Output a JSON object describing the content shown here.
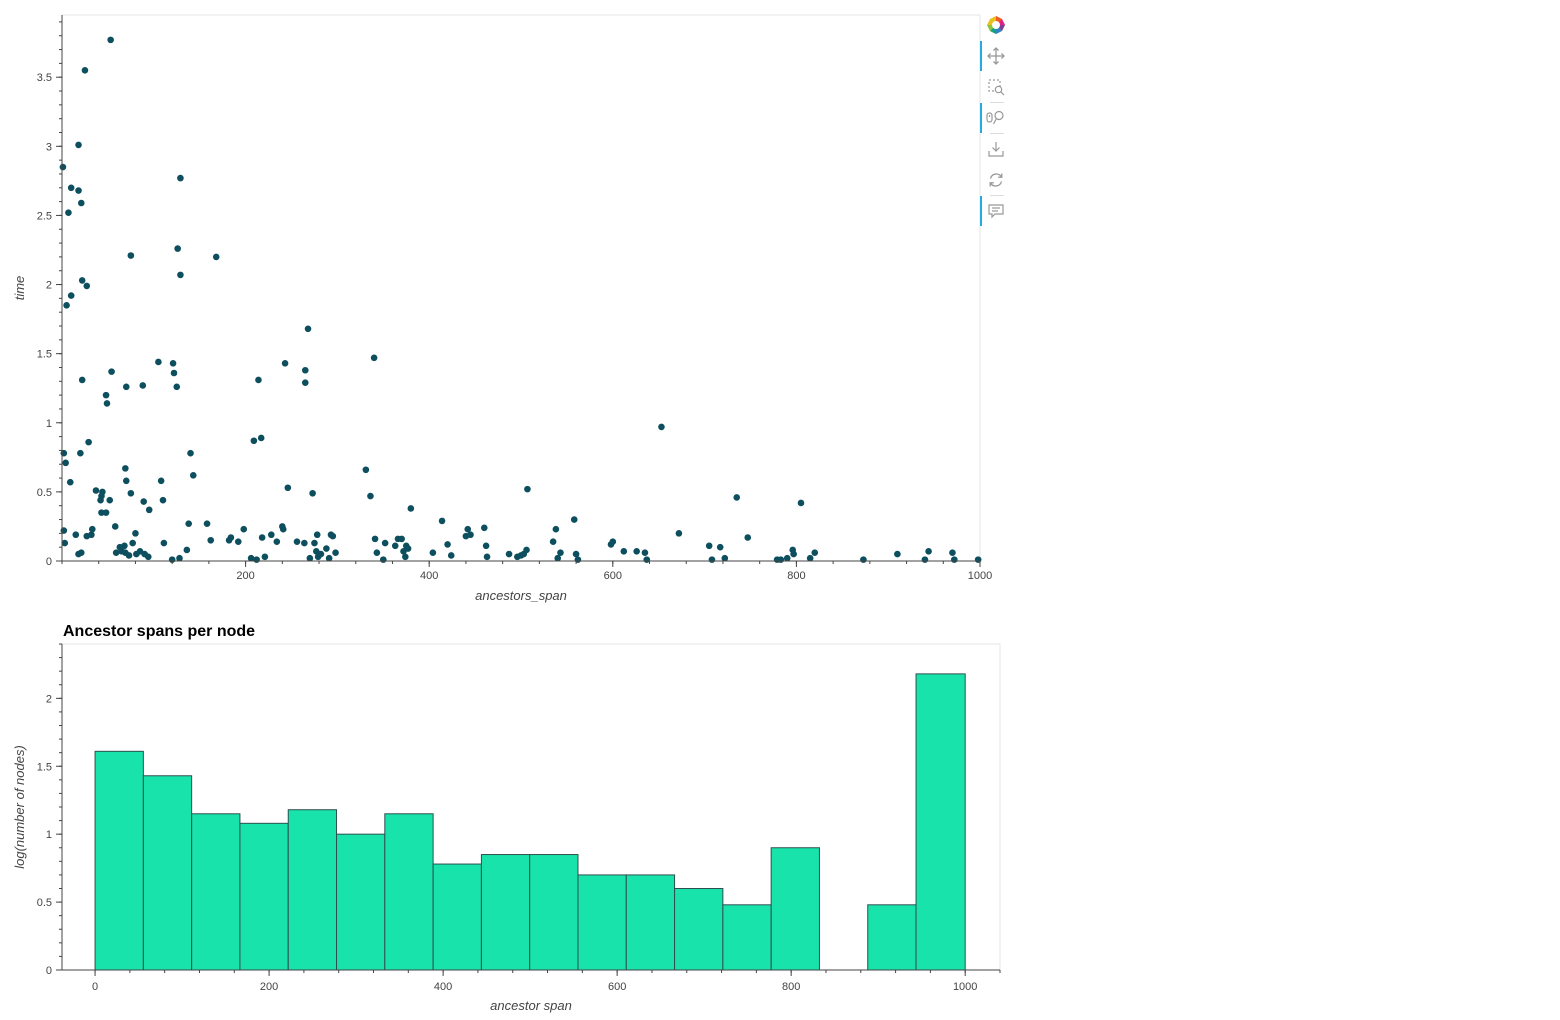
{
  "colors": {
    "scatter_point": "#0d4f5e",
    "hist_fill": "#17e3ab",
    "hist_stroke": "#2f4f4f",
    "axis": "#444444",
    "frame": "#e5e5e5",
    "toolbar_active": "#26aae1"
  },
  "toolbar": {
    "tools": [
      {
        "icon": "bokeh-logo-icon",
        "active": false
      },
      {
        "icon": "pan-icon",
        "active": true
      },
      {
        "icon": "box-zoom-icon",
        "active": false
      },
      {
        "icon": "wheel-zoom-icon",
        "active": true
      },
      {
        "icon": "save-icon",
        "active": false
      },
      {
        "icon": "reset-icon",
        "active": false
      },
      {
        "icon": "hover-icon",
        "active": true
      }
    ]
  },
  "chart_data": [
    {
      "type": "scatter",
      "title": "",
      "xlabel": "ancestors_span",
      "ylabel": "time",
      "xlim": [
        0,
        1000
      ],
      "ylim": [
        0,
        3.95
      ],
      "xticks": [
        200,
        400,
        600,
        800,
        1000
      ],
      "yticks": [
        0,
        0.5,
        1,
        1.5,
        2,
        2.5,
        3,
        3.5
      ],
      "ytick_labels": [
        "0",
        "0.5",
        "1",
        "1.5",
        "2",
        "2.5",
        "3",
        "3.5"
      ],
      "grid": false,
      "points": [
        [
          1,
          2.85
        ],
        [
          5,
          1.85
        ],
        [
          7,
          2.52
        ],
        [
          10,
          2.7
        ],
        [
          10,
          1.92
        ],
        [
          18,
          2.68
        ],
        [
          18,
          3.01
        ],
        [
          21,
          2.59
        ],
        [
          22,
          2.03
        ],
        [
          27,
          1.99
        ],
        [
          25,
          3.55
        ],
        [
          53,
          3.77
        ],
        [
          22,
          1.31
        ],
        [
          20,
          0.78
        ],
        [
          29,
          0.86
        ],
        [
          2,
          0.78
        ],
        [
          4,
          0.71
        ],
        [
          9,
          0.57
        ],
        [
          2,
          0.22
        ],
        [
          3,
          0.13
        ],
        [
          15,
          0.19
        ],
        [
          18,
          0.05
        ],
        [
          21,
          0.06
        ],
        [
          27,
          0.18
        ],
        [
          32,
          0.19
        ],
        [
          33,
          0.23
        ],
        [
          37,
          0.51
        ],
        [
          42,
          0.44
        ],
        [
          43,
          0.47
        ],
        [
          44,
          0.5
        ],
        [
          43,
          0.35
        ],
        [
          48,
          0.35
        ],
        [
          52,
          0.44
        ],
        [
          49,
          1.14
        ],
        [
          48,
          1.2
        ],
        [
          54,
          1.37
        ],
        [
          70,
          1.26
        ],
        [
          75,
          2.21
        ],
        [
          88,
          1.27
        ],
        [
          69,
          0.67
        ],
        [
          70,
          0.58
        ],
        [
          75,
          0.49
        ],
        [
          58,
          0.25
        ],
        [
          59,
          0.06
        ],
        [
          63,
          0.1
        ],
        [
          65,
          0.07
        ],
        [
          68,
          0.11
        ],
        [
          69,
          0.06
        ],
        [
          73,
          0.04
        ],
        [
          77,
          0.13
        ],
        [
          80,
          0.2
        ],
        [
          81,
          0.05
        ],
        [
          85,
          0.07
        ],
        [
          90,
          0.05
        ],
        [
          94,
          0.03
        ],
        [
          89,
          0.43
        ],
        [
          95,
          0.37
        ],
        [
          105,
          1.44
        ],
        [
          108,
          0.58
        ],
        [
          110,
          0.44
        ],
        [
          111,
          0.13
        ],
        [
          121,
          1.43
        ],
        [
          122,
          1.36
        ],
        [
          125,
          1.26
        ],
        [
          126,
          2.26
        ],
        [
          129,
          2.07
        ],
        [
          129,
          2.77
        ],
        [
          120,
          0.01
        ],
        [
          128,
          0.02
        ],
        [
          136,
          0.08
        ],
        [
          138,
          0.27
        ],
        [
          140,
          0.78
        ],
        [
          143,
          0.62
        ],
        [
          158,
          0.27
        ],
        [
          162,
          0.15
        ],
        [
          168,
          2.2
        ],
        [
          182,
          0.15
        ],
        [
          184,
          0.17
        ],
        [
          192,
          0.14
        ],
        [
          198,
          0.23
        ],
        [
          206,
          0.02
        ],
        [
          209,
          0.87
        ],
        [
          212,
          0.01
        ],
        [
          214,
          1.31
        ],
        [
          217,
          0.89
        ],
        [
          218,
          0.17
        ],
        [
          221,
          0.03
        ],
        [
          228,
          0.19
        ],
        [
          234,
          0.14
        ],
        [
          240,
          0.25
        ],
        [
          241,
          0.23
        ],
        [
          243,
          1.43
        ],
        [
          246,
          0.53
        ],
        [
          256,
          0.14
        ],
        [
          264,
          0.13
        ],
        [
          265,
          1.38
        ],
        [
          265,
          1.29
        ],
        [
          268,
          1.68
        ],
        [
          270,
          0.02
        ],
        [
          273,
          0.49
        ],
        [
          275,
          0.13
        ],
        [
          277,
          0.07
        ],
        [
          278,
          0.19
        ],
        [
          279,
          0.03
        ],
        [
          282,
          0.05
        ],
        [
          288,
          0.09
        ],
        [
          291,
          0.02
        ],
        [
          293,
          0.19
        ],
        [
          295,
          0.18
        ],
        [
          298,
          0.06
        ],
        [
          331,
          0.66
        ],
        [
          336,
          0.47
        ],
        [
          340,
          1.47
        ],
        [
          341,
          0.16
        ],
        [
          343,
          0.06
        ],
        [
          350,
          0.01
        ],
        [
          352,
          0.13
        ],
        [
          363,
          0.11
        ],
        [
          366,
          0.16
        ],
        [
          370,
          0.16
        ],
        [
          372,
          0.07
        ],
        [
          374,
          0.03
        ],
        [
          375,
          0.11
        ],
        [
          377,
          0.09
        ],
        [
          380,
          0.38
        ],
        [
          404,
          0.06
        ],
        [
          414,
          0.29
        ],
        [
          420,
          0.12
        ],
        [
          424,
          0.04
        ],
        [
          440,
          0.18
        ],
        [
          442,
          0.23
        ],
        [
          445,
          0.19
        ],
        [
          460,
          0.24
        ],
        [
          462,
          0.11
        ],
        [
          463,
          0.03
        ],
        [
          487,
          0.05
        ],
        [
          496,
          0.03
        ],
        [
          500,
          0.04
        ],
        [
          503,
          0.05
        ],
        [
          506,
          0.08
        ],
        [
          507,
          0.52
        ],
        [
          535,
          0.14
        ],
        [
          538,
          0.23
        ],
        [
          540,
          0.02
        ],
        [
          543,
          0.06
        ],
        [
          558,
          0.3
        ],
        [
          560,
          0.05
        ],
        [
          562,
          0.01
        ],
        [
          598,
          0.12
        ],
        [
          600,
          0.14
        ],
        [
          612,
          0.07
        ],
        [
          626,
          0.07
        ],
        [
          635,
          0.06
        ],
        [
          637,
          0.01
        ],
        [
          653,
          0.97
        ],
        [
          672,
          0.2
        ],
        [
          705,
          0.11
        ],
        [
          708,
          0.01
        ],
        [
          717,
          0.1
        ],
        [
          722,
          0.02
        ],
        [
          735,
          0.46
        ],
        [
          747,
          0.17
        ],
        [
          779,
          0.01
        ],
        [
          783,
          0.01
        ],
        [
          790,
          0.02
        ],
        [
          796,
          0.08
        ],
        [
          797,
          0.05
        ],
        [
          805,
          0.42
        ],
        [
          815,
          0.02
        ],
        [
          820,
          0.06
        ],
        [
          873,
          0.01
        ],
        [
          910,
          0.05
        ],
        [
          940,
          0.01
        ],
        [
          944,
          0.07
        ],
        [
          970,
          0.06
        ],
        [
          972,
          0.01
        ],
        [
          998,
          0.01
        ]
      ]
    },
    {
      "type": "bar",
      "title": "Ancestor spans per node",
      "xlabel": "ancestor span",
      "ylabel": "log(number of nodes)",
      "xlim": [
        -38,
        1040
      ],
      "ylim": [
        0,
        2.4
      ],
      "xticks": [
        0,
        200,
        400,
        600,
        800,
        1000
      ],
      "yticks": [
        0,
        0.5,
        1,
        1.5,
        2
      ],
      "ytick_labels": [
        "0",
        "0.5",
        "1",
        "1.5",
        "2"
      ],
      "grid": false,
      "bin_edges": [
        0,
        55.5,
        111,
        166.5,
        222,
        277.5,
        333,
        388.5,
        444,
        499.5,
        555,
        610.5,
        666,
        721.5,
        777,
        832.5,
        888,
        943.5,
        1000
      ],
      "values": [
        1.61,
        1.43,
        1.15,
        1.08,
        1.18,
        1.0,
        1.15,
        0.78,
        0.85,
        0.85,
        0.7,
        0.7,
        0.6,
        0.48,
        0.9,
        0.0,
        0.48,
        2.18
      ]
    }
  ]
}
